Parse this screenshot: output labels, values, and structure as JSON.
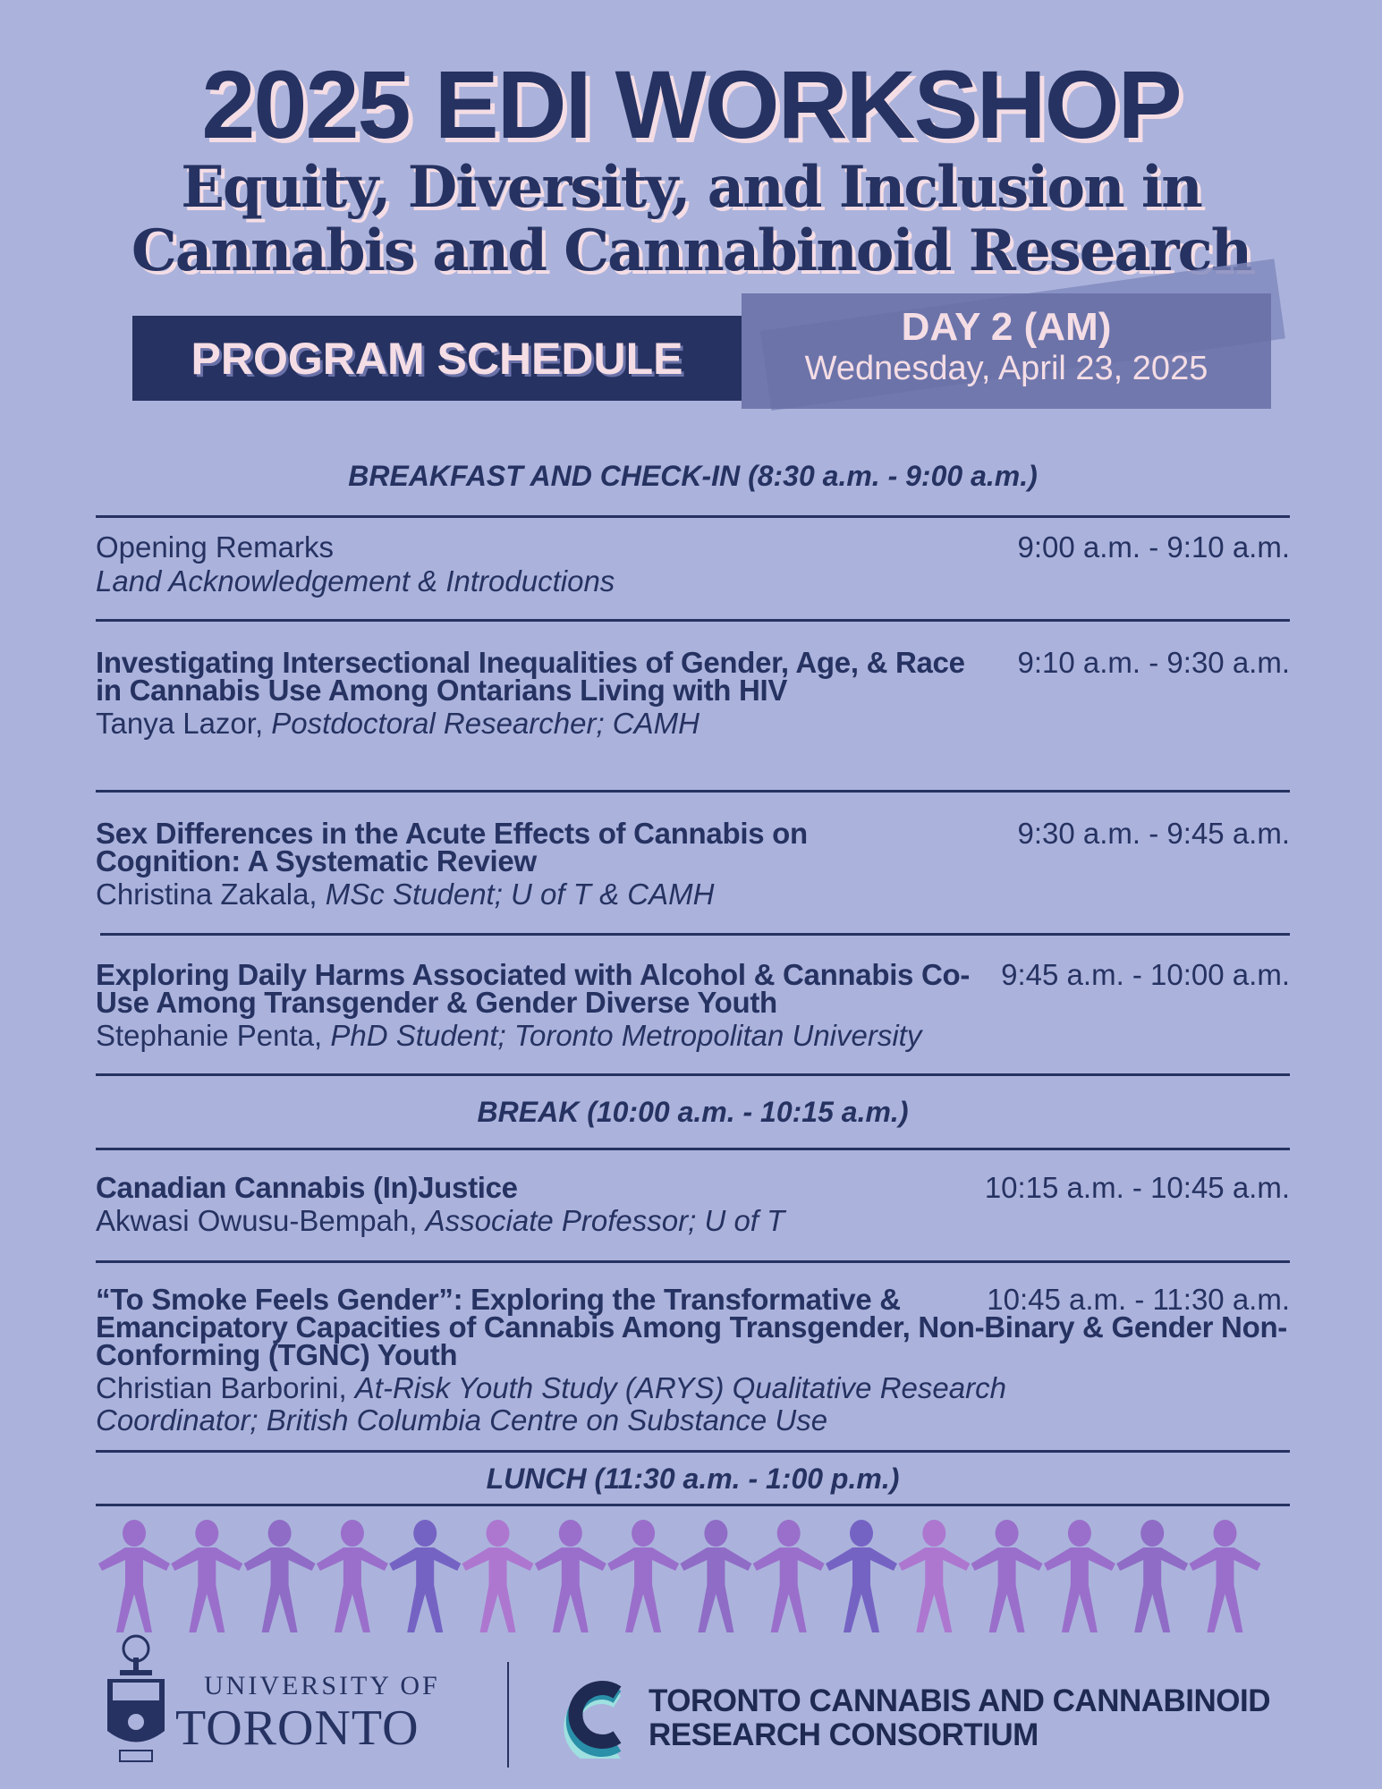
{
  "header": {
    "title": "2025 EDI WORKSHOP",
    "subtitle_line1": "Equity, Diversity, and Inclusion in",
    "subtitle_line2": "Cannabis and Cannabinoid Research",
    "program_label": "PROGRAM SCHEDULE",
    "day_label": "DAY 2 (AM)",
    "date": "Wednesday, April 23, 2025"
  },
  "schedule": {
    "breakfast": "BREAKFAST AND CHECK-IN (8:30 a.m. - 9:00 a.m.)",
    "opening": {
      "title": "Opening Remarks",
      "subtitle": "Land Acknowledgement & Introductions",
      "time": "9:00 a.m. - 9:10 a.m."
    },
    "talks": [
      {
        "title": "Investigating Intersectional Inequalities of Gender, Age, & Race in Cannabis Use Among Ontarians Living with HIV",
        "speaker": "Tanya Lazor,",
        "role": "Postdoctoral Researcher; CAMH",
        "time": "9:10 a.m. - 9:30 a.m."
      },
      {
        "title": "Sex Differences in the Acute Effects of Cannabis on Cognition: A Systematic Review",
        "speaker": "Christina Zakala,",
        "role": "MSc Student; U of T & CAMH",
        "time": "9:30 a.m. - 9:45 a.m."
      },
      {
        "title": "Exploring Daily Harms Associated with Alcohol & Cannabis Co-Use Among Transgender & Gender Diverse Youth",
        "speaker": "Stephanie Penta,",
        "role": "PhD Student; Toronto Metropolitan University",
        "time": "9:45 a.m. - 10:00 a.m."
      },
      {
        "title": "Canadian Cannabis (In)Justice",
        "speaker": "Akwasi Owusu-Bempah,",
        "role": "Associate Professor; U of T",
        "time": "10:15 a.m. - 10:45 a.m."
      },
      {
        "title": "“To Smoke Feels Gender”: Exploring the Transformative & Emancipatory Capacities of Cannabis Among Transgender, Non-Binary & Gender Non-Conforming (TGNC) Youth",
        "speaker": "Christian Barborini,",
        "role": "At-Risk Youth Study (ARYS) Qualitative Research Coordinator; British Columbia Centre on Substance Use",
        "time": "10:45 a.m. - 11:30 a.m."
      }
    ],
    "break": "BREAK (10:00 a.m. - 10:15 a.m.)",
    "lunch": "LUNCH (11:30 a.m. - 1:00 p.m.)"
  },
  "footer": {
    "uoft_line1": "UNIVERSITY OF",
    "uoft_line2": "TORONTO",
    "tccrc_line1": "TORONTO CANNABIS AND CANNABINOID",
    "tccrc_line2": "RESEARCH CONSORTIUM"
  },
  "colors": {
    "background": "#abb3dc",
    "navy": "#263261",
    "pink": "#f5dde5",
    "day_box": "#6a71a8",
    "people": [
      "#9a6fcb",
      "#9a6fcb",
      "#8f6cc6",
      "#9a6fcb",
      "#7563c4",
      "#ad77d0",
      "#9a6fcb",
      "#9a6fcb",
      "#8f6cc6",
      "#9a6fcb",
      "#7563c4",
      "#ad77d0",
      "#9a6fcb",
      "#9a6fcb",
      "#8f6cc6",
      "#9a6fcb"
    ]
  }
}
